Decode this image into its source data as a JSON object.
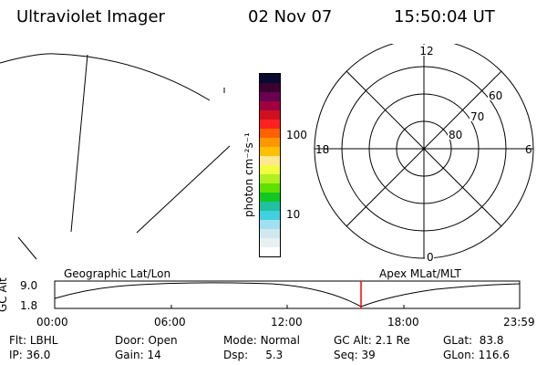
{
  "header": {
    "instrument": "Ultraviolet Imager",
    "date": "02 Nov 07",
    "time": "15:50:04 UT"
  },
  "colorbar": {
    "unit_label": "photon cm⁻²s⁻¹",
    "ticks": [
      "100",
      "10"
    ],
    "colors": [
      "#0a0a30",
      "#3a0030",
      "#6a0050",
      "#a00040",
      "#d01020",
      "#ff2020",
      "#ff6000",
      "#ff9800",
      "#ffc000",
      "#ffe890",
      "#f0ff40",
      "#b0f020",
      "#60e000",
      "#10c820",
      "#20c0a0",
      "#40d0e0",
      "#a0e0f0",
      "#d0e8f0",
      "#e8f0f4",
      "#ffffff"
    ]
  },
  "polar": {
    "hour_labels": {
      "top": "12",
      "left": "18",
      "right": "6",
      "bottom": "0"
    },
    "lat_labels": [
      "60",
      "70",
      "80"
    ]
  },
  "timeline": {
    "left_label": "Geographic Lat/Lon",
    "right_label": "Apex MLat/MLT",
    "y_axis_title": "GC Alt",
    "y_ticks": [
      "9.0",
      "1.8"
    ],
    "x_ticks": [
      "00:00",
      "06:00",
      "12:00",
      "18:00",
      "23:59"
    ],
    "marker_color": "#ff0000"
  },
  "info": {
    "flt_label": "Flt:",
    "flt_value": "LBHL",
    "door_label": "Door:",
    "door_value": "Open",
    "mode_label": "Mode:",
    "mode_value": "Normal",
    "gcalt_label": "GC Alt:",
    "gcalt_value": "2.1 Re",
    "glat_label": "GLat:",
    "glat_value": "83.8",
    "ip_label": "IP:",
    "ip_value": "36.0",
    "gain_label": "Gain:",
    "gain_value": "14",
    "dsp_label": "Dsp:",
    "dsp_value": "5.3",
    "seq_label": "Seq:",
    "seq_value": "39",
    "glon_label": "GLon:",
    "glon_value": "116.6"
  }
}
